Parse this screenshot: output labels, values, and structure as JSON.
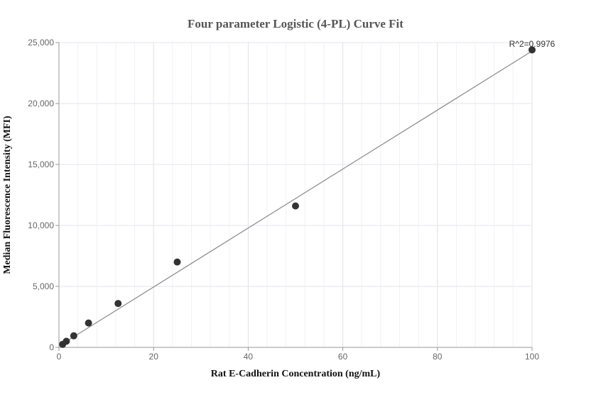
{
  "chart_data": {
    "type": "scatter",
    "title": "Four parameter Logistic (4-PL) Curve Fit",
    "xlabel": "Rat E-Cadherin Concentration (ng/mL)",
    "ylabel": "Median Fluorescence Intensity (MFI)",
    "xlim": [
      0,
      100
    ],
    "ylim": [
      0,
      25000
    ],
    "x_ticks": [
      0,
      20,
      40,
      60,
      80,
      100
    ],
    "y_ticks": [
      0,
      5000,
      10000,
      15000,
      20000,
      25000
    ],
    "x_tick_labels": [
      "0",
      "20",
      "40",
      "60",
      "80",
      "100"
    ],
    "y_tick_labels": [
      "0",
      "5,000",
      "10,000",
      "15,000",
      "20,000",
      "25,000"
    ],
    "grid": true,
    "series": [
      {
        "x": [
          0.78,
          1.56,
          3.13,
          6.25,
          12.5,
          25,
          50,
          100
        ],
        "y": [
          250,
          500,
          950,
          2000,
          3600,
          7000,
          11600,
          24400
        ]
      }
    ],
    "fit_line": {
      "x": [
        0.78,
        100
      ],
      "y": [
        300,
        24300
      ]
    },
    "annotation": "R^2=0.9976",
    "colors": {
      "points": "#333333",
      "fit_line": "#888888",
      "grid": "#e6e6ee",
      "axis": "#999999"
    }
  }
}
